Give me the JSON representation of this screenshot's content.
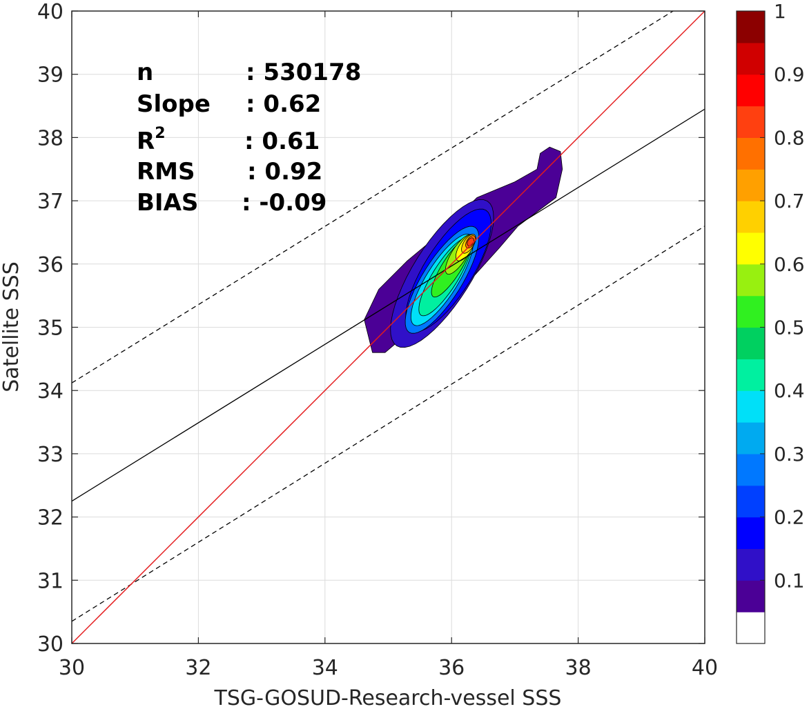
{
  "chart_data": {
    "type": "contour",
    "xlabel": "TSG-GOSUD-Research-vessel SSS",
    "ylabel": "Satellite SSS",
    "xlim": [
      30,
      40
    ],
    "ylim": [
      30,
      40
    ],
    "x_ticks": [
      30,
      32,
      34,
      36,
      38,
      40
    ],
    "y_ticks": [
      30,
      31,
      32,
      33,
      34,
      35,
      36,
      37,
      38,
      39,
      40
    ],
    "grid": true,
    "stats": {
      "n_label": "n",
      "n_value": ": 530178",
      "slope_label": "Slope",
      "slope_value": ": 0.62",
      "r2_label": "R",
      "r2_sup": "2",
      "r2_value": ": 0.61",
      "rms_label": "RMS",
      "rms_value": ": 0.92",
      "bias_label": "BIAS",
      "bias_value": ": -0.09"
    },
    "lines": {
      "identity": {
        "x": [
          30,
          40
        ],
        "y": [
          30,
          40
        ],
        "color": "#e41a1c"
      },
      "regression": {
        "x": [
          30,
          40
        ],
        "y": [
          32.25,
          38.45
        ],
        "color": "#000000"
      },
      "upper_bound": {
        "x": [
          30,
          39.5
        ],
        "y": [
          34.12,
          40
        ],
        "color": "#000000",
        "dash": true
      },
      "lower_bound": {
        "x": [
          30,
          40
        ],
        "y": [
          30.35,
          36.6
        ],
        "color": "#000000",
        "dash": true
      }
    },
    "density_peak": {
      "x": 36.3,
      "y": 36.35
    },
    "colorbar": {
      "ticks": [
        "0.1",
        "0.2",
        "0.3",
        "0.4",
        "0.5",
        "0.6",
        "0.7",
        "0.8",
        "0.9",
        "1"
      ],
      "levels": [
        "#ffffff",
        "#4b0096",
        "#3010c8",
        "#0000ff",
        "#0040ff",
        "#0078ff",
        "#00aaf0",
        "#00e0f8",
        "#00f0a0",
        "#00d060",
        "#30f020",
        "#98f010",
        "#ffff00",
        "#ffd000",
        "#ffa000",
        "#ff7000",
        "#ff4010",
        "#ff0000",
        "#d00000",
        "#8c0000"
      ]
    }
  }
}
